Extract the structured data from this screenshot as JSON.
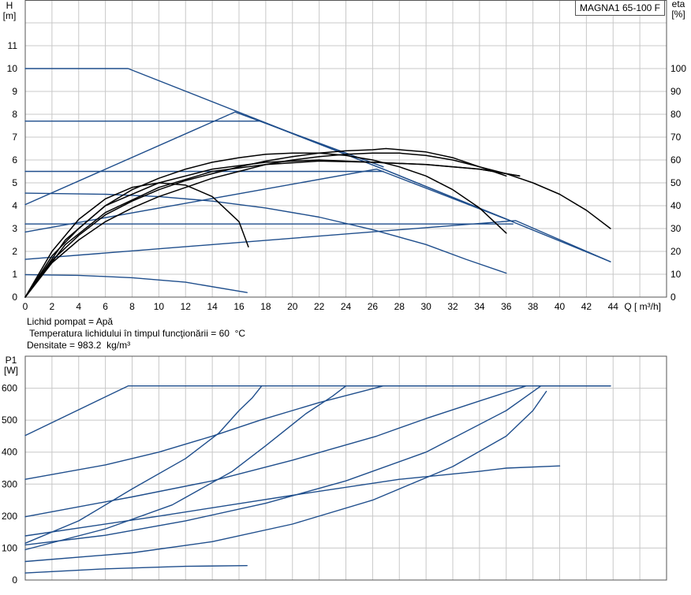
{
  "model_label": "MAGNA1 65-100 F",
  "notes": {
    "fluid": "Lichid pompat = Apă",
    "temperature": " Temperatura lichidului în timpul funcţionării = 60  °C",
    "density": "Densitate = 983.2  kg/m³"
  },
  "colors": {
    "curve": "#1f4e8c",
    "efficiency": "#000000",
    "grid": "#c8c8c8",
    "frame": "#555555"
  },
  "chart_data": [
    {
      "type": "line",
      "title": "",
      "xlabel": "Q [ m³/h]",
      "ylabel": "H\n[m]",
      "ylabel_right": "eta\n[%]",
      "xlim": [
        0,
        48
      ],
      "ylim": [
        0,
        12
      ],
      "ylim_right": [
        0,
        120
      ],
      "x_ticks": [
        0,
        2,
        4,
        6,
        8,
        10,
        12,
        14,
        16,
        18,
        20,
        22,
        24,
        26,
        28,
        30,
        32,
        34,
        36,
        38,
        40,
        42,
        44
      ],
      "y_ticks": [
        0,
        1,
        2,
        3,
        4,
        5,
        6,
        7,
        8,
        9,
        10,
        11
      ],
      "y_ticks_right": [
        0,
        10,
        20,
        30,
        40,
        50,
        60,
        70,
        80,
        90,
        100
      ],
      "grid": true,
      "series": [
        {
          "group": "pump",
          "points": [
            [
              0,
              10
            ],
            [
              7.7,
              10
            ],
            [
              26.8,
              5.6
            ],
            [
              43.8,
              1.55
            ]
          ]
        },
        {
          "group": "pump",
          "points": [
            [
              0,
              7.7
            ],
            [
              17.6,
              7.7
            ],
            [
              26.8,
              5.6
            ],
            [
              36.5,
              3.3
            ]
          ]
        },
        {
          "group": "pump",
          "points": [
            [
              0,
              5.5
            ],
            [
              26.8,
              5.5
            ]
          ]
        },
        {
          "group": "pump",
          "points": [
            [
              0,
              3.2
            ],
            [
              36.5,
              3.2
            ]
          ]
        },
        {
          "group": "pump",
          "points": [
            [
              0,
              4.05
            ],
            [
              15.7,
              8.1
            ],
            [
              26.8,
              5.7
            ]
          ]
        },
        {
          "group": "pump",
          "points": [
            [
              0,
              2.85
            ],
            [
              26.3,
              5.6
            ],
            [
              36.5,
              3.3
            ]
          ]
        },
        {
          "group": "pump",
          "points": [
            [
              0,
              1.65
            ],
            [
              36.7,
              3.35
            ],
            [
              43.8,
              1.55
            ]
          ]
        },
        {
          "group": "pump",
          "points": [
            [
              0,
              4.55
            ],
            [
              6,
              4.5
            ],
            [
              10,
              4.4
            ],
            [
              14,
              4.2
            ],
            [
              18,
              3.9
            ],
            [
              22,
              3.5
            ],
            [
              26,
              2.95
            ],
            [
              30,
              2.3
            ],
            [
              33,
              1.65
            ],
            [
              36,
              1.05
            ]
          ]
        },
        {
          "group": "pump",
          "points": [
            [
              0,
              0.98
            ],
            [
              4,
              0.95
            ],
            [
              8,
              0.85
            ],
            [
              12,
              0.65
            ],
            [
              16.6,
              0.2
            ]
          ]
        },
        {
          "group": "efficiency",
          "points": [
            [
              0,
              0
            ],
            [
              2,
              15
            ],
            [
              4,
              25
            ],
            [
              6,
              33
            ],
            [
              8,
              39
            ],
            [
              10,
              44
            ],
            [
              12,
              48
            ],
            [
              14,
              52
            ],
            [
              16,
              55
            ],
            [
              18,
              58
            ],
            [
              20,
              60
            ],
            [
              22,
              61.5
            ],
            [
              24,
              62.5
            ],
            [
              26,
              63
            ],
            [
              28,
              63
            ],
            [
              30,
              62
            ],
            [
              32,
              60
            ],
            [
              34,
              57
            ],
            [
              36,
              54
            ],
            [
              38,
              50
            ],
            [
              40,
              45
            ],
            [
              42,
              38
            ],
            [
              43.8,
              30
            ]
          ]
        },
        {
          "group": "efficiency",
          "points": [
            [
              0,
              0
            ],
            [
              2,
              16
            ],
            [
              4,
              27
            ],
            [
              6,
              36
            ],
            [
              8,
              42
            ],
            [
              10,
              47
            ],
            [
              12,
              51
            ],
            [
              14,
              54
            ],
            [
              16,
              57
            ],
            [
              18,
              59.5
            ],
            [
              20,
              61.5
            ],
            [
              22,
              63
            ],
            [
              24,
              64
            ],
            [
              26,
              64.5
            ],
            [
              27,
              65
            ],
            [
              30,
              63.5
            ],
            [
              32,
              61
            ],
            [
              34,
              57
            ],
            [
              36,
              53
            ]
          ]
        },
        {
          "group": "efficiency",
          "points": [
            [
              0,
              0
            ],
            [
              2,
              18
            ],
            [
              4,
              30
            ],
            [
              6,
              40
            ],
            [
              8,
              47
            ],
            [
              10,
              52
            ],
            [
              12,
              56
            ],
            [
              14,
              59
            ],
            [
              16,
              61
            ],
            [
              18,
              62.5
            ],
            [
              20,
              63
            ],
            [
              22,
              63
            ],
            [
              24,
              62
            ],
            [
              26,
              60
            ],
            [
              28,
              57
            ],
            [
              30,
              53
            ],
            [
              32,
              47
            ],
            [
              34,
              39
            ],
            [
              36,
              28
            ]
          ]
        },
        {
          "group": "efficiency",
          "points": [
            [
              0,
              0
            ],
            [
              2,
              20
            ],
            [
              4,
              34
            ],
            [
              6,
              43
            ],
            [
              8,
              48
            ],
            [
              10,
              50
            ],
            [
              12,
              49
            ],
            [
              14,
              44
            ],
            [
              16,
              33
            ],
            [
              16.7,
              22
            ]
          ]
        },
        {
          "group": "efficiency",
          "points": [
            [
              0,
              0
            ],
            [
              3,
              25
            ],
            [
              6,
              40
            ],
            [
              10,
              50
            ],
            [
              14,
              56
            ],
            [
              18,
              59
            ],
            [
              22,
              60
            ],
            [
              26,
              59
            ],
            [
              30,
              58
            ],
            [
              34,
              56
            ],
            [
              37,
              53
            ]
          ]
        },
        {
          "group": "efficiency",
          "points": [
            [
              0,
              0
            ],
            [
              3,
              23
            ],
            [
              6,
              37
            ],
            [
              10,
              48
            ],
            [
              14,
              55
            ],
            [
              18,
              58
            ],
            [
              22,
              59.5
            ],
            [
              26,
              59
            ],
            [
              30,
              58
            ],
            [
              34,
              56
            ],
            [
              37,
              53
            ]
          ]
        }
      ]
    },
    {
      "type": "line",
      "title": "",
      "xlabel": "",
      "ylabel": "P1\n[W]",
      "xlim": [
        0,
        48
      ],
      "ylim": [
        0,
        700
      ],
      "y_ticks": [
        0,
        100,
        200,
        300,
        400,
        500,
        600
      ],
      "grid": true,
      "series": [
        {
          "points": [
            [
              0,
              452
            ],
            [
              7.7,
              607
            ],
            [
              43.8,
              607
            ]
          ]
        },
        {
          "points": [
            [
              0,
              315
            ],
            [
              6,
              360
            ],
            [
              10,
              400
            ],
            [
              14,
              450
            ],
            [
              17.6,
              500
            ],
            [
              22,
              555
            ],
            [
              26.8,
              607
            ],
            [
              43.8,
              607
            ]
          ]
        },
        {
          "points": [
            [
              0,
              198
            ],
            [
              8,
              260
            ],
            [
              14,
              310
            ],
            [
              20,
              375
            ],
            [
              26.3,
              450
            ],
            [
              30,
              505
            ],
            [
              34,
              560
            ],
            [
              37.5,
              607
            ]
          ]
        },
        {
          "points": [
            [
              0,
              95
            ],
            [
              6,
              160
            ],
            [
              11,
              235
            ],
            [
              15.5,
              340
            ],
            [
              18,
              420
            ],
            [
              21,
              520
            ],
            [
              23,
              575
            ],
            [
              24,
              607
            ],
            [
              26.8,
              607
            ]
          ]
        },
        {
          "points": [
            [
              0,
              110
            ],
            [
              6,
              140
            ],
            [
              12,
              185
            ],
            [
              18,
              240
            ],
            [
              24,
              310
            ],
            [
              30,
              400
            ],
            [
              36,
              530
            ],
            [
              38.6,
              607
            ],
            [
              43.8,
              607
            ]
          ]
        },
        {
          "points": [
            [
              0,
              58
            ],
            [
              8,
              85
            ],
            [
              14,
              120
            ],
            [
              20,
              175
            ],
            [
              26,
              250
            ],
            [
              32,
              355
            ],
            [
              36,
              450
            ],
            [
              38,
              530
            ],
            [
              39,
              590
            ]
          ]
        },
        {
          "points": [
            [
              0,
              138
            ],
            [
              10,
              200
            ],
            [
              20,
              265
            ],
            [
              28,
              315
            ],
            [
              34,
              340
            ],
            [
              36,
              350
            ],
            [
              40,
              357
            ]
          ]
        },
        {
          "points": [
            [
              0,
              22
            ],
            [
              6,
              35
            ],
            [
              12,
              43
            ],
            [
              16.6,
              45
            ]
          ]
        },
        {
          "points": [
            [
              0,
              115
            ],
            [
              4,
              185
            ],
            [
              8,
              285
            ],
            [
              12,
              380
            ],
            [
              14.5,
              460
            ],
            [
              16,
              530
            ],
            [
              17,
              570
            ],
            [
              17.7,
              607
            ]
          ]
        }
      ]
    }
  ]
}
